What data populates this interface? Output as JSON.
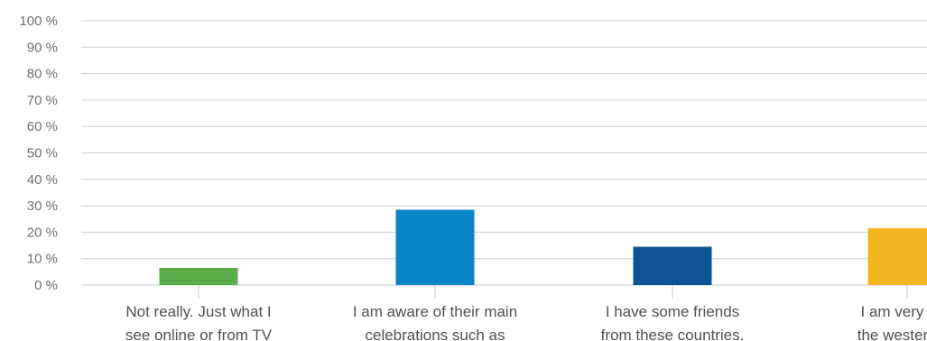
{
  "chart_data": {
    "type": "bar",
    "ylim": [
      0,
      100
    ],
    "yticks": [
      0,
      10,
      20,
      30,
      40,
      50,
      60,
      70,
      80,
      90,
      100
    ],
    "ytick_labels": [
      "0 %",
      "10 %",
      "20 %",
      "30 %",
      "40 %",
      "50 %",
      "60 %",
      "70 %",
      "80 %",
      "90 %",
      "100 %"
    ],
    "grid": true,
    "categories": [
      {
        "lines": [
          "Not really. Just what I",
          "see online or from TV"
        ]
      },
      {
        "lines": [
          "I am aware of their main",
          "celebrations such as"
        ]
      },
      {
        "lines": [
          "I have some friends",
          "from these countries."
        ]
      },
      {
        "lines": [
          "I am very fam",
          "the western cu"
        ]
      }
    ],
    "values": [
      6.5,
      28.5,
      14.5,
      21.5
    ],
    "colors": [
      "#5aad4a",
      "#0a86c8",
      "#0e5596",
      "#f2b71e"
    ]
  }
}
